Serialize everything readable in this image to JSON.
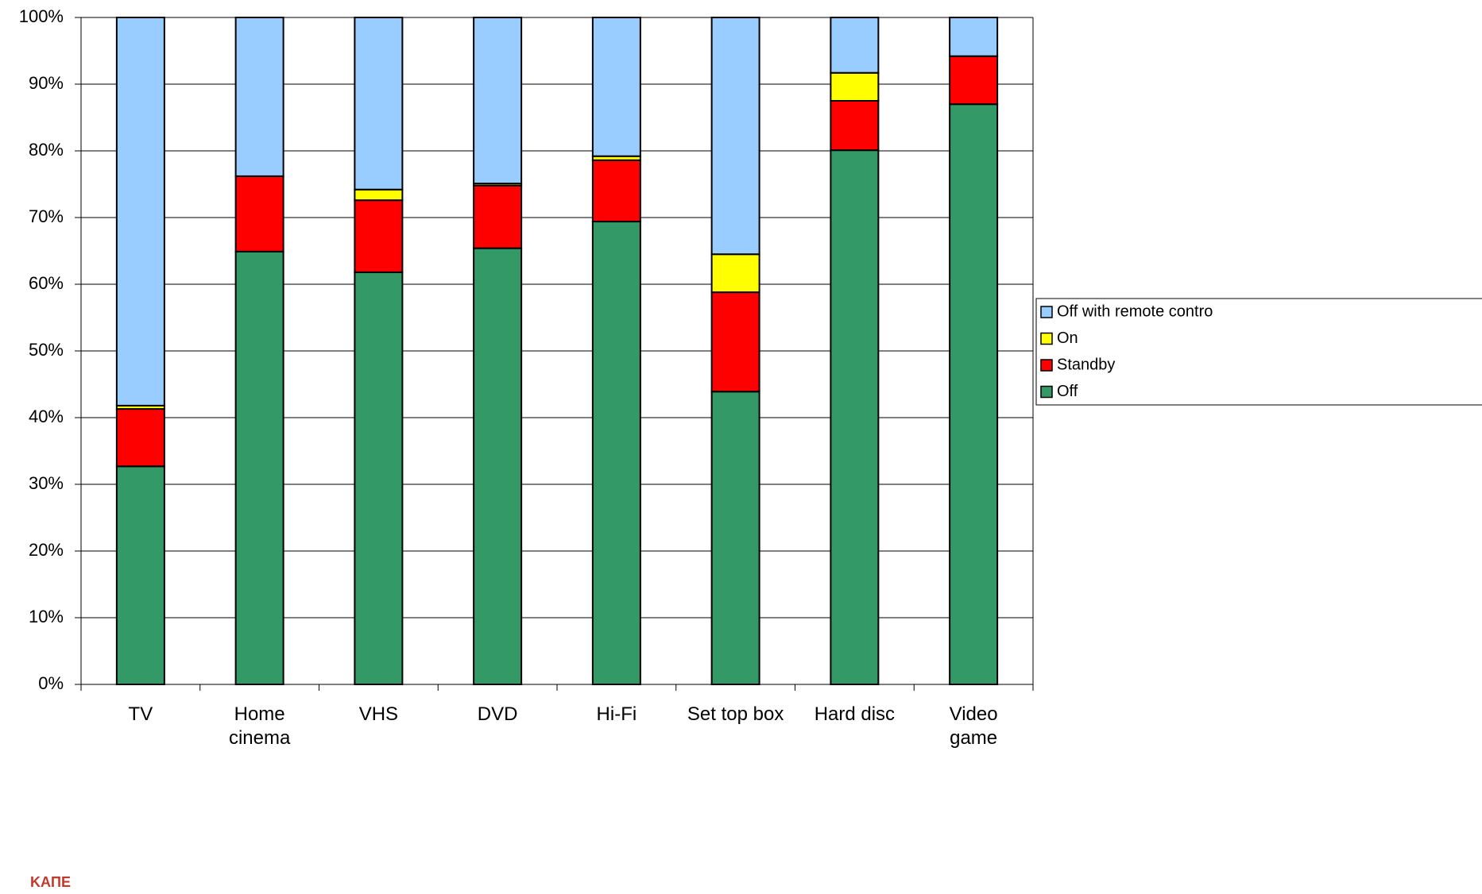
{
  "chart_data": {
    "type": "stacked_bar_percent",
    "categories": [
      "TV",
      "Home\ncinema",
      "VHS",
      "DVD",
      "Hi-Fi",
      "Set top box",
      "Hard disc",
      "Video\ngame"
    ],
    "series": [
      {
        "name": "Off",
        "color": "#339966",
        "values": [
          32.7,
          64.9,
          61.8,
          65.4,
          69.4,
          43.9,
          80.1,
          87.0
        ]
      },
      {
        "name": "Standby",
        "color": "#ff0000",
        "values": [
          8.6,
          11.3,
          10.8,
          9.4,
          9.2,
          14.9,
          7.4,
          7.2
        ]
      },
      {
        "name": "On",
        "color": "#ffff00",
        "values": [
          0.5,
          0,
          1.6,
          0.3,
          0.6,
          5.7,
          4.2,
          0
        ]
      },
      {
        "name": "Off with remote contro",
        "color": "#99ccff",
        "values": [
          58.2,
          23.8,
          25.8,
          24.9,
          20.8,
          35.5,
          8.3,
          5.8
        ]
      }
    ],
    "ylim": [
      0,
      100
    ],
    "yticks": [
      {
        "value": 0,
        "label": "0%"
      },
      {
        "value": 10,
        "label": "10%"
      },
      {
        "value": 20,
        "label": "20%"
      },
      {
        "value": 30,
        "label": "30%"
      },
      {
        "value": 40,
        "label": "40%"
      },
      {
        "value": 50,
        "label": "50%"
      },
      {
        "value": 60,
        "label": "60%"
      },
      {
        "value": 70,
        "label": "70%"
      },
      {
        "value": 80,
        "label": "80%"
      },
      {
        "value": 90,
        "label": "90%"
      },
      {
        "value": 100,
        "label": "100%"
      }
    ],
    "grid": true,
    "legend": "right",
    "logo_text": "KAΠE"
  }
}
